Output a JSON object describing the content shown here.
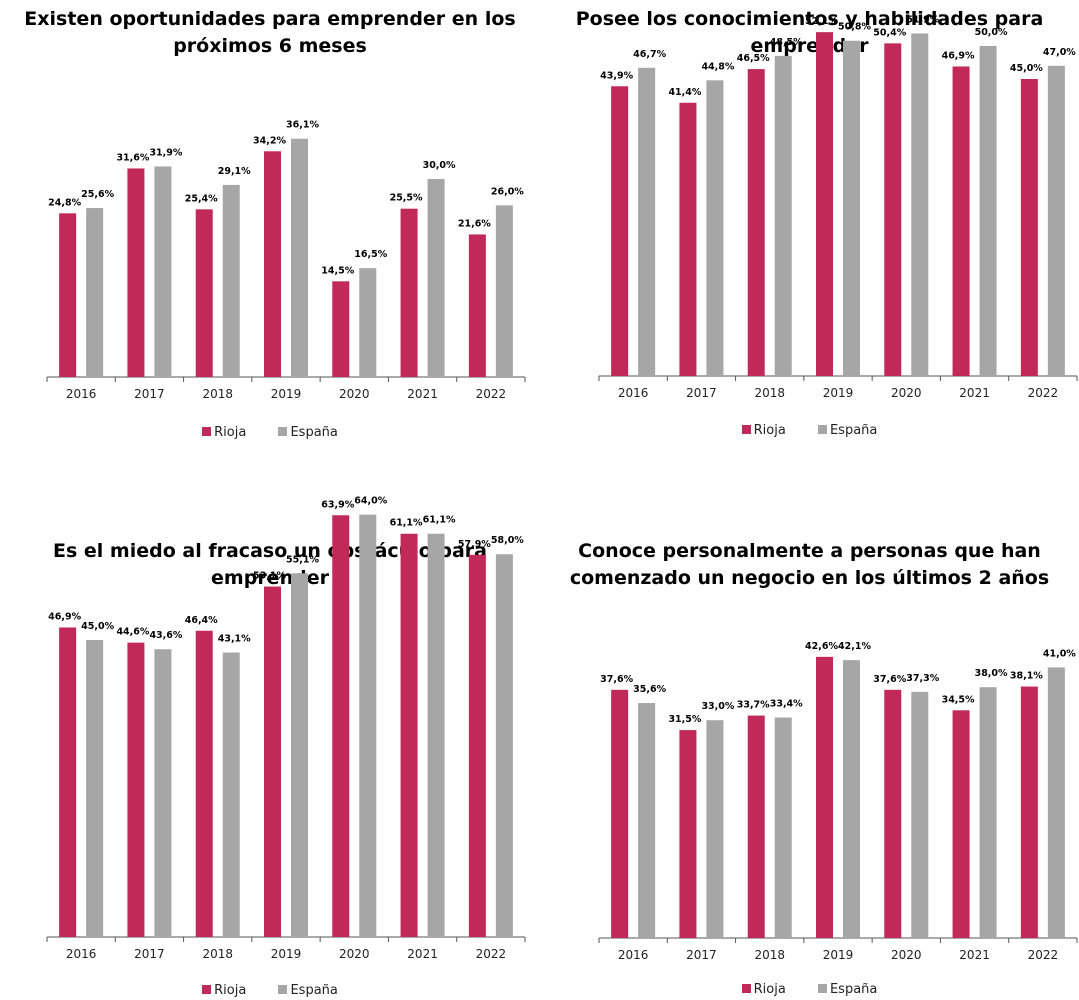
{
  "colors": {
    "rioja": "#c0295a",
    "espana": "#a6a6a6",
    "axis": "#555555"
  },
  "legend": {
    "rioja": "Rioja",
    "espana": "España"
  },
  "chart_data": [
    {
      "type": "bar",
      "title": "Existen oportunidades para emprender en los próximos 6 meses",
      "categories": [
        "2016",
        "2017",
        "2018",
        "2019",
        "2020",
        "2021",
        "2022"
      ],
      "series": [
        {
          "name": "Rioja",
          "values": [
            24.8,
            31.6,
            25.4,
            34.2,
            14.5,
            25.5,
            21.6
          ],
          "labels": [
            "24,8%",
            "31,6%",
            "25,4%",
            "34,2%",
            "14,5%",
            "25,5%",
            "21,6%"
          ]
        },
        {
          "name": "España",
          "values": [
            25.6,
            31.9,
            29.1,
            36.1,
            16.5,
            30.0,
            26.0
          ],
          "labels": [
            "25,6%",
            "31,9%",
            "29,1%",
            "36,1%",
            "16,5%",
            "30,0%",
            "26,0%"
          ]
        }
      ],
      "ylim": [
        0,
        70
      ],
      "legend_position": "bottom"
    },
    {
      "type": "bar",
      "title": "Posee los conocimientos y habilidades para emprender",
      "categories": [
        "2016",
        "2017",
        "2018",
        "2019",
        "2020",
        "2021",
        "2022"
      ],
      "series": [
        {
          "name": "Rioja",
          "values": [
            43.9,
            41.4,
            46.5,
            52.1,
            50.4,
            46.9,
            45.0
          ],
          "labels": [
            "43,9%",
            "41,4%",
            "46,5%",
            "52,1%",
            "50,4%",
            "46,9%",
            "45,0%"
          ]
        },
        {
          "name": "España",
          "values": [
            46.7,
            44.8,
            48.5,
            50.8,
            51.9,
            50.0,
            47.0
          ],
          "labels": [
            "46,7%",
            "44,8%",
            "48,5%",
            "50,8%",
            "51,9%",
            "50,0%",
            "47,0%"
          ]
        }
      ],
      "ylim": [
        0,
        70
      ],
      "legend_position": "bottom"
    },
    {
      "type": "bar",
      "title": "Es el miedo al fracaso un obstáculo para emprender",
      "categories": [
        "2016",
        "2017",
        "2018",
        "2019",
        "2020",
        "2021",
        "2022"
      ],
      "series": [
        {
          "name": "Rioja",
          "values": [
            46.9,
            44.6,
            46.4,
            53.1,
            63.9,
            61.1,
            57.9
          ],
          "labels": [
            "46,9%",
            "44,6%",
            "46,4%",
            "53,1%",
            "63,9%",
            "61,1%",
            "57,9%"
          ]
        },
        {
          "name": "España",
          "values": [
            45.0,
            43.6,
            43.1,
            55.1,
            64.0,
            61.1,
            58.0
          ],
          "labels": [
            "45,0%",
            "43,6%",
            "43,1%",
            "55,1%",
            "64,0%",
            "61,1%",
            "58,0%"
          ]
        }
      ],
      "ylim": [
        0,
        70
      ],
      "legend_position": "bottom"
    },
    {
      "type": "bar",
      "title": "Conoce personalmente a personas que han comenzado un negocio en los últimos 2 años",
      "categories": [
        "2016",
        "2017",
        "2018",
        "2019",
        "2020",
        "2021",
        "2022"
      ],
      "series": [
        {
          "name": "Rioja",
          "values": [
            37.6,
            31.5,
            33.7,
            42.6,
            37.6,
            34.5,
            38.1
          ],
          "labels": [
            "37,6%",
            "31,5%",
            "33,7%",
            "42,6%",
            "37,6%",
            "34,5%",
            "38,1%"
          ]
        },
        {
          "name": "España",
          "values": [
            35.6,
            33.0,
            33.4,
            42.1,
            37.3,
            38.0,
            41.0
          ],
          "labels": [
            "35,6%",
            "33,0%",
            "33,4%",
            "42,1%",
            "37,3%",
            "38,0%",
            "41,0%"
          ]
        }
      ],
      "ylim": [
        0,
        70
      ],
      "legend_position": "bottom"
    }
  ]
}
